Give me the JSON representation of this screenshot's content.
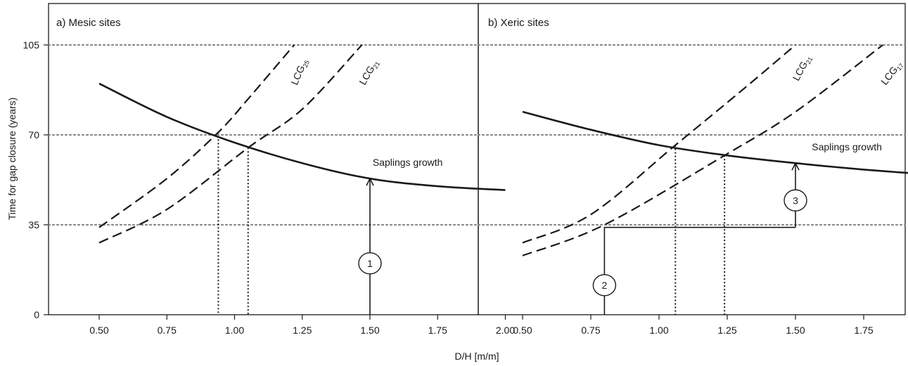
{
  "chart_data": {
    "type": "line",
    "xlabel": "D/H [m/m]",
    "ylabel": "Time for gap closure (years)",
    "xlim": [
      0.35,
      2.15
    ],
    "ylim": [
      0,
      112
    ],
    "xticks": [
      "0.50",
      "0.75",
      "1.00",
      "1.25",
      "1.50",
      "1.75",
      "2.00"
    ],
    "yticks": [
      "0",
      "35",
      "70",
      "105"
    ],
    "grid": "dotted horizontal lines at 35, 70, 105",
    "panels": [
      {
        "title": "a) Mesic sites",
        "series": [
          {
            "name": "Saplings growth",
            "style": "solid",
            "x": [
              0.5,
              0.75,
              1.0,
              1.25,
              1.5,
              1.75,
              2.0
            ],
            "y": [
              90,
              77,
              67,
              59,
              53,
              50,
              48.5
            ]
          },
          {
            "name": "LCG25",
            "label_main": "LCG",
            "label_sub": "25",
            "style": "dashed",
            "x": [
              0.5,
              0.75,
              0.94,
              1.05,
              1.22
            ],
            "y": [
              34,
              53,
              71,
              84,
              105
            ]
          },
          {
            "name": "LCG21",
            "label_main": "LCG",
            "label_sub": "21",
            "style": "dashed",
            "x": [
              0.5,
              0.75,
              1.05,
              1.25,
              1.47
            ],
            "y": [
              28,
              41,
              65,
              80,
              105
            ]
          }
        ],
        "vlines": [
          {
            "x": 0.94,
            "y": 71
          },
          {
            "x": 1.05,
            "y": 65
          }
        ],
        "annotations": [
          {
            "label": "1",
            "type": "arrow",
            "points": [
              [
                1.5,
                0
              ],
              [
                1.5,
                53
              ]
            ]
          }
        ]
      },
      {
        "title": "b) Xeric sites",
        "series": [
          {
            "name": "Saplings growth",
            "style": "solid",
            "x": [
              0.5,
              0.75,
              1.0,
              1.25,
              1.5,
              1.75,
              2.0
            ],
            "y": [
              79,
              72,
              66,
              62,
              59,
              56.5,
              54.5
            ]
          },
          {
            "name": "LCG21",
            "label_main": "LCG",
            "label_sub": "21",
            "style": "dashed",
            "x": [
              0.5,
              0.75,
              1.06,
              1.3,
              1.5
            ],
            "y": [
              28,
              39,
              66,
              87,
              105
            ]
          },
          {
            "name": "LCG17",
            "label_main": "LCG",
            "label_sub": "17",
            "style": "dashed",
            "x": [
              0.5,
              0.8,
              1.24,
              1.5,
              1.82
            ],
            "y": [
              23,
              35,
              62,
              79,
              105
            ]
          }
        ],
        "vlines": [
          {
            "x": 1.06,
            "y": 66
          },
          {
            "x": 1.24,
            "y": 62
          }
        ],
        "annotations": [
          {
            "label": "2",
            "type": "line",
            "points": [
              [
                0.8,
                0
              ],
              [
                0.8,
                34
              ],
              [
                1.5,
                34
              ]
            ]
          },
          {
            "label": "3",
            "type": "arrow",
            "points": [
              [
                1.5,
                34
              ],
              [
                1.5,
                59
              ]
            ]
          }
        ]
      }
    ]
  }
}
